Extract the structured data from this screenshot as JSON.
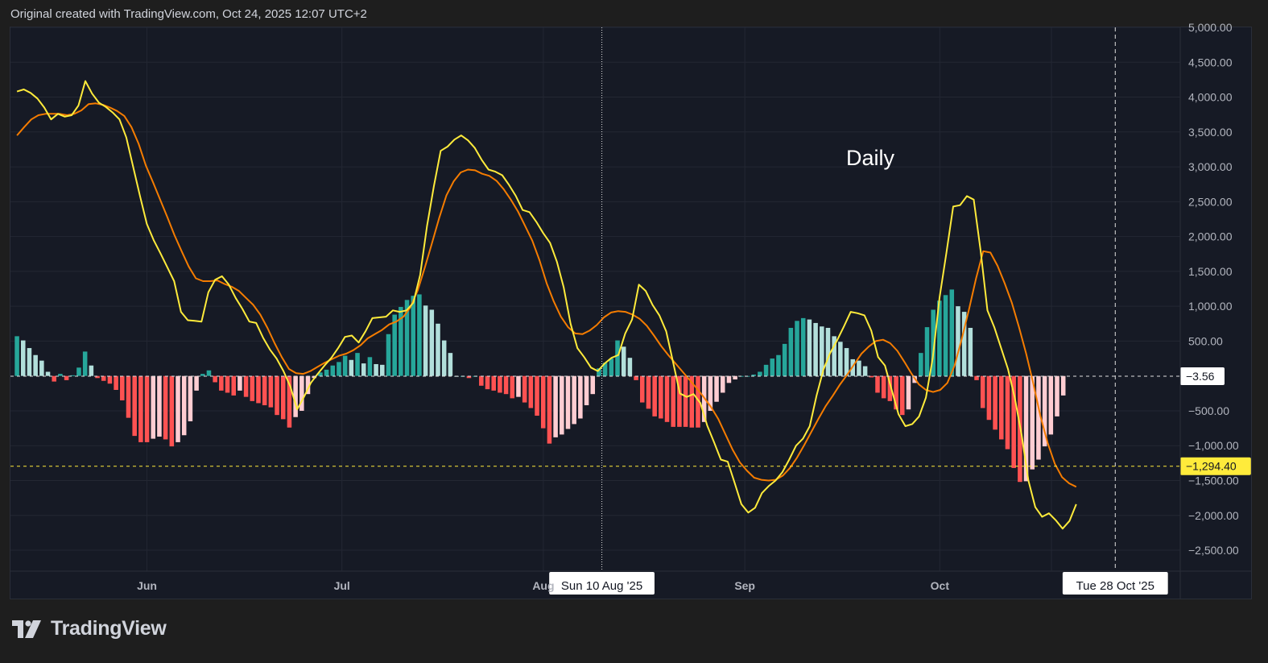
{
  "header": {
    "caption": "Original created with TradingView.com, Oct 24, 2025 12:07 UTC+2"
  },
  "footer": {
    "brand": "TradingView",
    "logo_icon": "tradingview-logo-icon"
  },
  "chart_data": {
    "type": "line",
    "annotation": "Daily",
    "ylim": [
      -2800,
      5000
    ],
    "y_ticks": [
      5000,
      4500,
      4000,
      3500,
      3000,
      2500,
      2000,
      1500,
      1000,
      500,
      -500,
      -1000,
      -1500,
      -2000,
      -2500
    ],
    "y_tick_labels": [
      "5,000.00",
      "4,500.00",
      "4,000.00",
      "3,500.00",
      "3,000.00",
      "2,500.00",
      "2,000.00",
      "1,500.00",
      "1,000.00",
      "500.00",
      "−500.00",
      "−1,000.00",
      "−1,500.00",
      "−2,000.00",
      "−2,500.00"
    ],
    "x_ticks": [
      "Jun",
      "Jul",
      "Aug",
      "Sep",
      "Oct"
    ],
    "x_tick_days": [
      31,
      61,
      92,
      123,
      153
    ],
    "crosshair_labels": [
      {
        "label": "Sun 10 Aug '25",
        "day": 101
      },
      {
        "label": "Tue 28 Oct '25",
        "day": 180
      }
    ],
    "price_labels": [
      {
        "label": "−3.56",
        "value": -3.56,
        "style": "neutral"
      },
      {
        "label": "−1,294.40",
        "value": -1294.4,
        "style": "signal"
      }
    ],
    "grid": true,
    "colors": {
      "macd": "#ffeb3b",
      "signal": "#f57c00",
      "hist_pos_strong": "#26a69a",
      "hist_pos_weak": "#b2dfdb",
      "hist_neg_strong": "#ff5252",
      "hist_neg_weak": "#ffcdd2",
      "background": "#161a25"
    },
    "x_start_day": 11,
    "series": [
      {
        "name": "MACD",
        "values": [
          4080,
          4110,
          4060,
          3980,
          3850,
          3680,
          3760,
          3720,
          3740,
          3880,
          4230,
          4050,
          3920,
          3860,
          3780,
          3680,
          3420,
          3000,
          2580,
          2180,
          1950,
          1760,
          1560,
          1360,
          920,
          800,
          790,
          780,
          1200,
          1380,
          1430,
          1310,
          1120,
          960,
          780,
          760,
          550,
          380,
          250,
          70,
          -150,
          -480,
          -300,
          -100,
          30,
          150,
          260,
          400,
          560,
          580,
          480,
          640,
          830,
          840,
          850,
          940,
          920,
          940,
          1050,
          1450,
          2150,
          2720,
          3230,
          3290,
          3390,
          3450,
          3380,
          3270,
          3100,
          2960,
          2930,
          2880,
          2740,
          2580,
          2380,
          2350,
          2210,
          2050,
          1910,
          1640,
          1270,
          750,
          400,
          270,
          120,
          70,
          180,
          260,
          300,
          610,
          810,
          1310,
          1220,
          1020,
          870,
          640,
          200,
          -250,
          -300,
          -260,
          -390,
          -710,
          -950,
          -1200,
          -1230,
          -1530,
          -1840,
          -1960,
          -1890,
          -1680,
          -1580,
          -1500,
          -1380,
          -1200,
          -1000,
          -900,
          -720,
          -280,
          90,
          330,
          510,
          710,
          920,
          900,
          870,
          650,
          270,
          150,
          -200,
          -550,
          -720,
          -690,
          -580,
          -310,
          260,
          1130,
          1770,
          2430,
          2450,
          2580,
          2530,
          1800,
          940,
          700,
          400,
          100,
          -310,
          -840,
          -1500,
          -1880,
          -2020,
          -1970,
          -2070,
          -2190,
          -2080,
          -1840
        ]
      },
      {
        "name": "Signal",
        "values": [
          3450,
          3570,
          3680,
          3740,
          3760,
          3760,
          3760,
          3740,
          3760,
          3810,
          3900,
          3910,
          3890,
          3850,
          3800,
          3730,
          3570,
          3330,
          3020,
          2780,
          2530,
          2280,
          2020,
          1790,
          1570,
          1400,
          1360,
          1360,
          1370,
          1320,
          1280,
          1220,
          1120,
          1020,
          880,
          690,
          470,
          270,
          100,
          40,
          30,
          70,
          130,
          190,
          240,
          290,
          320,
          370,
          440,
          540,
          600,
          660,
          740,
          780,
          850,
          990,
          1230,
          1560,
          1910,
          2270,
          2590,
          2790,
          2920,
          2960,
          2950,
          2900,
          2870,
          2800,
          2680,
          2530,
          2360,
          2150,
          1940,
          1660,
          1330,
          1070,
          850,
          700,
          610,
          600,
          650,
          730,
          840,
          910,
          930,
          920,
          880,
          820,
          720,
          580,
          430,
          300,
          180,
          60,
          -60,
          -180,
          -310,
          -450,
          -620,
          -840,
          -1060,
          -1240,
          -1360,
          -1460,
          -1490,
          -1500,
          -1490,
          -1430,
          -1320,
          -1170,
          -990,
          -800,
          -610,
          -430,
          -280,
          -120,
          20,
          170,
          320,
          420,
          500,
          520,
          470,
          360,
          200,
          30,
          -120,
          -200,
          -230,
          -200,
          -100,
          150,
          530,
          950,
          1400,
          1790,
          1770,
          1580,
          1330,
          1050,
          700,
          320,
          -110,
          -580,
          -960,
          -1260,
          -1450,
          -1540,
          -1590
        ]
      },
      {
        "name": "Histogram",
        "values": [
          570,
          510,
          400,
          300,
          220,
          60,
          -80,
          30,
          -60,
          10,
          120,
          350,
          150,
          -30,
          -70,
          -110,
          -200,
          -350,
          -600,
          -860,
          -950,
          -950,
          -900,
          -870,
          -910,
          -1010,
          -950,
          -850,
          -650,
          -210,
          30,
          80,
          -90,
          -210,
          -240,
          -280,
          -210,
          -300,
          -360,
          -390,
          -420,
          -450,
          -560,
          -620,
          -740,
          -590,
          -500,
          -260,
          -30,
          50,
          90,
          150,
          200,
          290,
          230,
          330,
          180,
          270,
          170,
          160,
          600,
          880,
          990,
          1090,
          1150,
          1170,
          1010,
          950,
          750,
          510,
          330,
          0,
          0,
          -30,
          0,
          -140,
          -190,
          -210,
          -240,
          -260,
          -320,
          -300,
          -380,
          -460,
          -570,
          -750,
          -970,
          -880,
          -840,
          -760,
          -690,
          -610,
          -420,
          -260,
          110,
          190,
          250,
          510,
          420,
          260,
          -60,
          -380,
          -470,
          -580,
          -610,
          -660,
          -730,
          -730,
          -730,
          -740,
          -740,
          -660,
          -500,
          -370,
          -240,
          -100,
          -50,
          0,
          0,
          20,
          60,
          160,
          250,
          300,
          460,
          690,
          790,
          830,
          810,
          760,
          710,
          690,
          570,
          490,
          400,
          240,
          220,
          140,
          -20,
          -240,
          -320,
          -360,
          -480,
          -560,
          -480,
          -100,
          330,
          700,
          950,
          1080,
          1160,
          1240,
          1000,
          920,
          690,
          -60,
          -460,
          -630,
          -770,
          -910,
          -1050,
          -1320,
          -1520,
          -1510,
          -1340,
          -1200,
          -1010,
          -840,
          -580,
          -280
        ]
      }
    ]
  }
}
